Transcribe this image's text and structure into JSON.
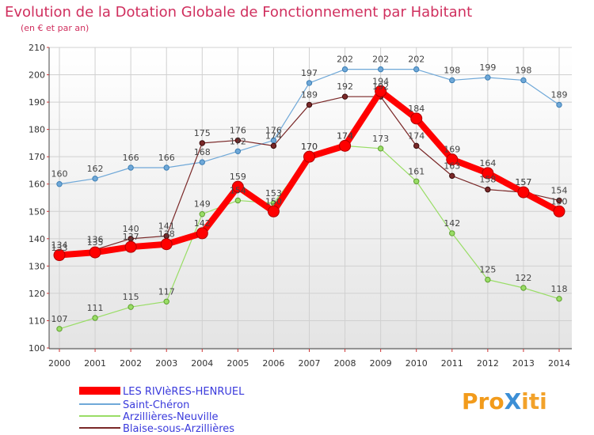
{
  "chart_data": {
    "type": "line",
    "title": "Evolution de la Dotation Globale de Fonctionnement par Habitant",
    "subtitle": "(en € et par an)",
    "xlabel": "",
    "ylabel": "",
    "x": [
      "2000",
      "2001",
      "2002",
      "2003",
      "2004",
      "2005",
      "2006",
      "2007",
      "2008",
      "2009",
      "2010",
      "2011",
      "2012",
      "2013",
      "2014"
    ],
    "ylim": [
      100,
      210
    ],
    "yticks": [
      "100",
      "110",
      "120",
      "130",
      "140",
      "150",
      "160",
      "170",
      "180",
      "190",
      "200",
      "210"
    ],
    "grid": true,
    "series": [
      {
        "name": "LES RIVIèRES-HENRUEL",
        "color": "#ff0000",
        "values": [
          134,
          135,
          137,
          138,
          142,
          159,
          150,
          170,
          174,
          194,
          184,
          169,
          164,
          157,
          150
        ],
        "labels": [
          "134",
          "135",
          "137",
          "138",
          "142",
          "159",
          "150",
          "170",
          "174",
          "194",
          "184",
          "169",
          "164",
          "157",
          "150"
        ]
      },
      {
        "name": "Saint-Chéron",
        "color": "#6fa8d8",
        "values": [
          160,
          162,
          166,
          166,
          168,
          172,
          176,
          197,
          202,
          202,
          202,
          198,
          199,
          198,
          189
        ],
        "labels": [
          "160",
          "162",
          "166",
          "166",
          "168",
          "172",
          "176",
          "197",
          "202",
          "202",
          "202",
          "198",
          "199",
          "198",
          "189"
        ]
      },
      {
        "name": "Arzillières-Neuville",
        "color": "#99dd66",
        "values": [
          107,
          111,
          115,
          117,
          149,
          154,
          153,
          170,
          174,
          173,
          161,
          142,
          125,
          122,
          118
        ],
        "labels": [
          "107",
          "111",
          "115",
          "117",
          "149",
          "154",
          "153",
          "170",
          "174",
          "173",
          "161",
          "142",
          "125",
          "122",
          "118"
        ]
      },
      {
        "name": "Blaise-sous-Arzillières",
        "color": "#7a2828",
        "values": [
          133,
          136,
          140,
          141,
          175,
          176,
          174,
          189,
          192,
          192,
          174,
          163,
          158,
          157,
          154
        ],
        "labels": [
          "133",
          "136",
          "140",
          "141",
          "175",
          "176",
          "174",
          "189",
          "192",
          "192",
          "174",
          "163",
          "158",
          "157",
          "154"
        ]
      }
    ],
    "legend_position": "bottom-left"
  },
  "branding": {
    "logo_text": "ProXiti"
  }
}
